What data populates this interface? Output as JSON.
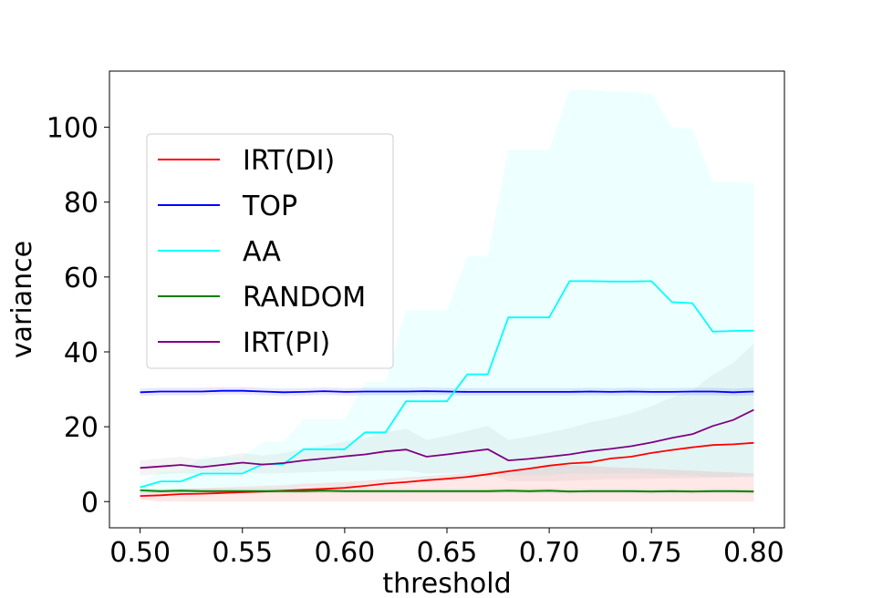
{
  "chart_data": {
    "type": "line",
    "title": "",
    "xlabel": "threshold",
    "ylabel": "variance",
    "xlim": [
      0.485,
      0.815
    ],
    "ylim": [
      -7,
      115
    ],
    "grid": false,
    "legend_position": "upper-left",
    "x_ticks": [
      0.5,
      0.55,
      0.6,
      0.65,
      0.7,
      0.75,
      0.8
    ],
    "x_tick_labels": [
      "0.50",
      "0.55",
      "0.60",
      "0.65",
      "0.70",
      "0.75",
      "0.80"
    ],
    "y_ticks": [
      0,
      20,
      40,
      60,
      80,
      100
    ],
    "y_tick_labels": [
      "0",
      "20",
      "40",
      "60",
      "80",
      "100"
    ],
    "x": [
      0.5,
      0.51,
      0.52,
      0.53,
      0.54,
      0.55,
      0.56,
      0.57,
      0.58,
      0.59,
      0.6,
      0.61,
      0.62,
      0.63,
      0.64,
      0.65,
      0.66,
      0.67,
      0.68,
      0.69,
      0.7,
      0.71,
      0.72,
      0.73,
      0.74,
      0.75,
      0.76,
      0.77,
      0.78,
      0.79,
      0.8
    ],
    "series": [
      {
        "name": "IRT(DI)",
        "color": "#ff0000",
        "values": [
          1.5,
          1.7,
          2.0,
          2.1,
          2.3,
          2.5,
          2.7,
          2.9,
          3.2,
          3.4,
          3.7,
          4.2,
          4.8,
          5.2,
          5.7,
          6.1,
          6.6,
          7.3,
          8.1,
          8.8,
          9.6,
          10.2,
          10.5,
          11.5,
          12.0,
          13.0,
          13.8,
          14.5,
          15.1,
          15.3,
          15.7
        ],
        "band_lower": [
          0.5,
          0.0,
          0.0,
          0.0,
          0.0,
          0.0,
          0.0,
          0.0,
          0.0,
          0.0,
          0.0,
          0.0,
          0.0,
          0.0,
          0.0,
          0.0,
          0.0,
          0.0,
          0.0,
          0.0,
          0.0,
          0.0,
          0.0,
          0.0,
          0.0,
          0.0,
          0.0,
          0.0,
          0.0,
          0.0,
          0.0
        ],
        "band_upper": [
          2.5,
          3.0,
          3.4,
          3.6,
          3.8,
          4.0,
          4.2,
          4.4,
          4.8,
          5.0,
          5.2,
          5.6,
          6.0,
          6.5,
          6.8,
          7.2,
          7.6,
          8.0,
          8.5,
          9.0,
          9.5,
          9.8,
          9.5,
          9.2,
          9.0,
          8.8,
          8.5,
          8.3,
          8.0,
          7.8,
          7.5
        ]
      },
      {
        "name": "TOP",
        "color": "#0000ff",
        "values": [
          29.2,
          29.4,
          29.4,
          29.4,
          29.6,
          29.6,
          29.4,
          29.2,
          29.3,
          29.5,
          29.3,
          29.4,
          29.4,
          29.4,
          29.5,
          29.4,
          29.3,
          29.3,
          29.3,
          29.3,
          29.3,
          29.3,
          29.4,
          29.3,
          29.4,
          29.3,
          29.3,
          29.4,
          29.4,
          29.2,
          29.4
        ],
        "band_lower": [
          28.2,
          28.4,
          28.4,
          28.4,
          28.6,
          28.6,
          28.4,
          28.2,
          28.3,
          28.5,
          28.3,
          28.4,
          28.4,
          28.4,
          28.5,
          28.4,
          28.3,
          28.3,
          28.3,
          28.3,
          28.3,
          28.3,
          28.4,
          28.3,
          28.4,
          28.3,
          28.3,
          28.4,
          28.4,
          28.2,
          28.4
        ],
        "band_upper": [
          30.2,
          30.4,
          30.4,
          30.4,
          30.6,
          30.6,
          30.4,
          30.2,
          30.3,
          30.5,
          30.3,
          30.4,
          30.4,
          30.4,
          30.5,
          30.4,
          30.3,
          30.3,
          30.3,
          30.3,
          30.3,
          30.3,
          30.4,
          30.3,
          30.4,
          30.3,
          30.3,
          30.4,
          30.4,
          30.2,
          30.4
        ]
      },
      {
        "name": "AA",
        "color": "#00ffff",
        "values": [
          3.8,
          5.4,
          5.4,
          7.5,
          7.5,
          7.5,
          10.0,
          10.0,
          14.0,
          14.0,
          14.0,
          18.5,
          18.5,
          26.8,
          26.8,
          26.8,
          34.0,
          34.0,
          49.2,
          49.2,
          49.2,
          58.9,
          58.9,
          58.8,
          58.8,
          58.9,
          53.3,
          53.0,
          45.4,
          45.6,
          45.7
        ],
        "band_lower": [
          2.0,
          2.5,
          2.5,
          2.8,
          2.8,
          2.8,
          3.0,
          3.0,
          4.0,
          4.0,
          4.0,
          5.0,
          5.0,
          6.0,
          6.0,
          6.0,
          6.5,
          6.5,
          7.0,
          7.0,
          7.0,
          7.5,
          7.5,
          7.5,
          7.5,
          7.5,
          7.0,
          7.0,
          6.5,
          6.5,
          6.5
        ],
        "band_upper": [
          5.0,
          8.0,
          8.0,
          12.0,
          12.0,
          12.0,
          16.0,
          16.0,
          22.0,
          22.0,
          22.0,
          32.0,
          32.0,
          51.0,
          51.0,
          51.0,
          65.5,
          65.5,
          94.0,
          94.0,
          94.0,
          110.0,
          110.0,
          109.5,
          109.5,
          109.0,
          100.0,
          99.5,
          85.5,
          85.3,
          85.0
        ]
      },
      {
        "name": "RANDOM",
        "color": "#008000",
        "values": [
          3.0,
          2.8,
          2.9,
          2.8,
          2.8,
          2.8,
          2.8,
          2.8,
          2.8,
          2.9,
          2.8,
          2.8,
          2.8,
          2.8,
          2.8,
          2.8,
          2.8,
          2.8,
          2.9,
          2.8,
          2.9,
          2.7,
          2.8,
          2.8,
          2.8,
          2.7,
          2.8,
          2.7,
          2.8,
          2.8,
          2.7
        ],
        "band_lower": [
          2.4,
          2.2,
          2.3,
          2.2,
          2.2,
          2.2,
          2.2,
          2.2,
          2.2,
          2.3,
          2.2,
          2.2,
          2.2,
          2.2,
          2.2,
          2.2,
          2.2,
          2.2,
          2.3,
          2.2,
          2.3,
          2.1,
          2.2,
          2.2,
          2.2,
          2.1,
          2.2,
          2.1,
          2.2,
          2.2,
          2.1
        ],
        "band_upper": [
          3.6,
          3.4,
          3.5,
          3.4,
          3.4,
          3.4,
          3.4,
          3.4,
          3.4,
          3.5,
          3.4,
          3.4,
          3.4,
          3.4,
          3.4,
          3.4,
          3.4,
          3.4,
          3.5,
          3.4,
          3.5,
          3.3,
          3.4,
          3.4,
          3.4,
          3.3,
          3.4,
          3.3,
          3.4,
          3.4,
          3.3
        ]
      },
      {
        "name": "IRT(PI)",
        "color": "#800080",
        "values": [
          9.0,
          9.4,
          9.8,
          9.2,
          9.8,
          10.4,
          9.9,
          10.3,
          11.0,
          11.5,
          12.1,
          12.6,
          13.4,
          13.9,
          12.0,
          12.6,
          13.3,
          14.0,
          11.0,
          11.4,
          12.0,
          12.6,
          13.5,
          14.1,
          14.8,
          15.8,
          17.0,
          18.0,
          20.2,
          21.8,
          24.5
        ],
        "band_lower": [
          7.0,
          7.3,
          7.6,
          7.2,
          7.5,
          7.8,
          7.5,
          7.6,
          7.8,
          8.0,
          8.2,
          8.2,
          8.3,
          8.3,
          7.5,
          7.6,
          7.7,
          7.8,
          5.5,
          5.5,
          5.5,
          5.6,
          5.8,
          6.0,
          6.0,
          6.1,
          6.2,
          6.3,
          6.5,
          6.6,
          6.8
        ],
        "band_upper": [
          11.0,
          11.5,
          12.0,
          11.2,
          12.1,
          13.0,
          12.3,
          13.0,
          14.2,
          15.0,
          16.0,
          17.0,
          18.5,
          19.5,
          16.5,
          17.6,
          18.9,
          20.2,
          16.5,
          17.3,
          18.5,
          19.6,
          21.2,
          22.2,
          23.6,
          25.5,
          27.8,
          29.7,
          33.9,
          37.0,
          42.2
        ]
      }
    ]
  }
}
